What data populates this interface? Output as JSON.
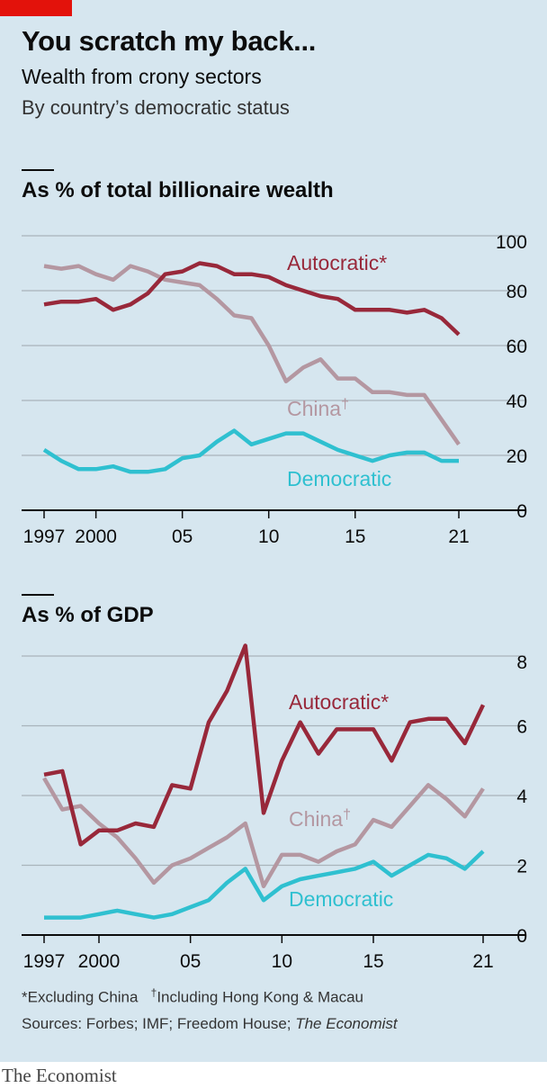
{
  "header": {
    "title": "You scratch my back...",
    "subtitle": "Wealth from crony sectors",
    "subsubtitle": "By country’s democratic status"
  },
  "colors": {
    "autocratic": "#98283a",
    "china": "#b497a1",
    "democratic": "#2fc0d0",
    "background": "#d6e6ef",
    "grid": "#a9b4bb",
    "brand_red": "#e3120b"
  },
  "chart_data": [
    {
      "type": "line",
      "title": "As % of total billionaire wealth",
      "x": [
        1997,
        1998,
        1999,
        2000,
        2001,
        2002,
        2003,
        2004,
        2005,
        2006,
        2007,
        2008,
        2009,
        2010,
        2011,
        2012,
        2013,
        2014,
        2015,
        2016,
        2017,
        2018,
        2019,
        2020,
        2021
      ],
      "x_ticks": [
        1997,
        2000,
        2005,
        2010,
        2015,
        2021
      ],
      "x_tick_labels": [
        "1997",
        "2000",
        "05",
        "10",
        "15",
        "21"
      ],
      "ylim": [
        0,
        100
      ],
      "y_ticks": [
        0,
        20,
        40,
        60,
        80,
        100
      ],
      "grid": true,
      "series": [
        {
          "name": "Autocratic*",
          "values": [
            75,
            76,
            76,
            77,
            73,
            75,
            79,
            86,
            87,
            90,
            89,
            86,
            86,
            85,
            82,
            80,
            78,
            77,
            73,
            73,
            73,
            72,
            73,
            70,
            64
          ]
        },
        {
          "name": "China†",
          "values": [
            89,
            88,
            89,
            86,
            84,
            89,
            87,
            84,
            83,
            82,
            77,
            71,
            70,
            60,
            47,
            52,
            55,
            48,
            48,
            43,
            43,
            42,
            42,
            33,
            24
          ]
        },
        {
          "name": "Democratic",
          "values": [
            22,
            18,
            15,
            15,
            16,
            14,
            14,
            15,
            19,
            20,
            25,
            29,
            24,
            26,
            28,
            28,
            25,
            22,
            20,
            18,
            20,
            21,
            21,
            18,
            18
          ]
        }
      ],
      "labels": {
        "autocratic": "Autocratic*",
        "china": "China",
        "china_mark": "†",
        "democratic": "Democratic"
      }
    },
    {
      "type": "line",
      "title": "As % of GDP",
      "x": [
        1997,
        1998,
        1999,
        2000,
        2001,
        2002,
        2003,
        2004,
        2005,
        2006,
        2007,
        2008,
        2009,
        2010,
        2011,
        2012,
        2013,
        2014,
        2015,
        2016,
        2017,
        2018,
        2019,
        2020,
        2021
      ],
      "x_ticks": [
        1997,
        2000,
        2005,
        2010,
        2015,
        2021
      ],
      "x_tick_labels": [
        "1997",
        "2000",
        "05",
        "10",
        "15",
        "21"
      ],
      "ylim": [
        0,
        8
      ],
      "y_ticks": [
        0,
        2,
        4,
        6,
        8
      ],
      "grid": true,
      "series": [
        {
          "name": "Autocratic*",
          "values": [
            4.6,
            4.7,
            2.6,
            3.0,
            3.0,
            3.2,
            3.1,
            4.3,
            4.2,
            6.1,
            7.0,
            8.3,
            3.5,
            5.0,
            6.1,
            5.2,
            5.9,
            5.9,
            5.9,
            5.0,
            6.1,
            6.2,
            6.2,
            5.5,
            6.6
          ]
        },
        {
          "name": "China†",
          "values": [
            4.5,
            3.6,
            3.7,
            3.2,
            2.8,
            2.2,
            1.5,
            2.0,
            2.2,
            2.5,
            2.8,
            3.2,
            1.4,
            2.3,
            2.3,
            2.1,
            2.4,
            2.6,
            3.3,
            3.1,
            3.7,
            4.3,
            3.9,
            3.4,
            4.2
          ]
        },
        {
          "name": "Democratic",
          "values": [
            0.5,
            0.5,
            0.5,
            0.6,
            0.7,
            0.6,
            0.5,
            0.6,
            0.8,
            1.0,
            1.5,
            1.9,
            1.0,
            1.4,
            1.6,
            1.7,
            1.8,
            1.9,
            2.1,
            1.7,
            2.0,
            2.3,
            2.2,
            1.9,
            2.4
          ]
        }
      ],
      "labels": {
        "autocratic": "Autocratic*",
        "china": "China",
        "china_mark": "†",
        "democratic": "Democratic"
      }
    }
  ],
  "footnotes": {
    "excluding": "*Excluding China",
    "dagger": "†",
    "including": "Including Hong Kong & Macau",
    "sources_prefix": "Sources: Forbes; IMF; Freedom House; ",
    "sources_italic": "The Economist"
  },
  "brand": "The Economist"
}
